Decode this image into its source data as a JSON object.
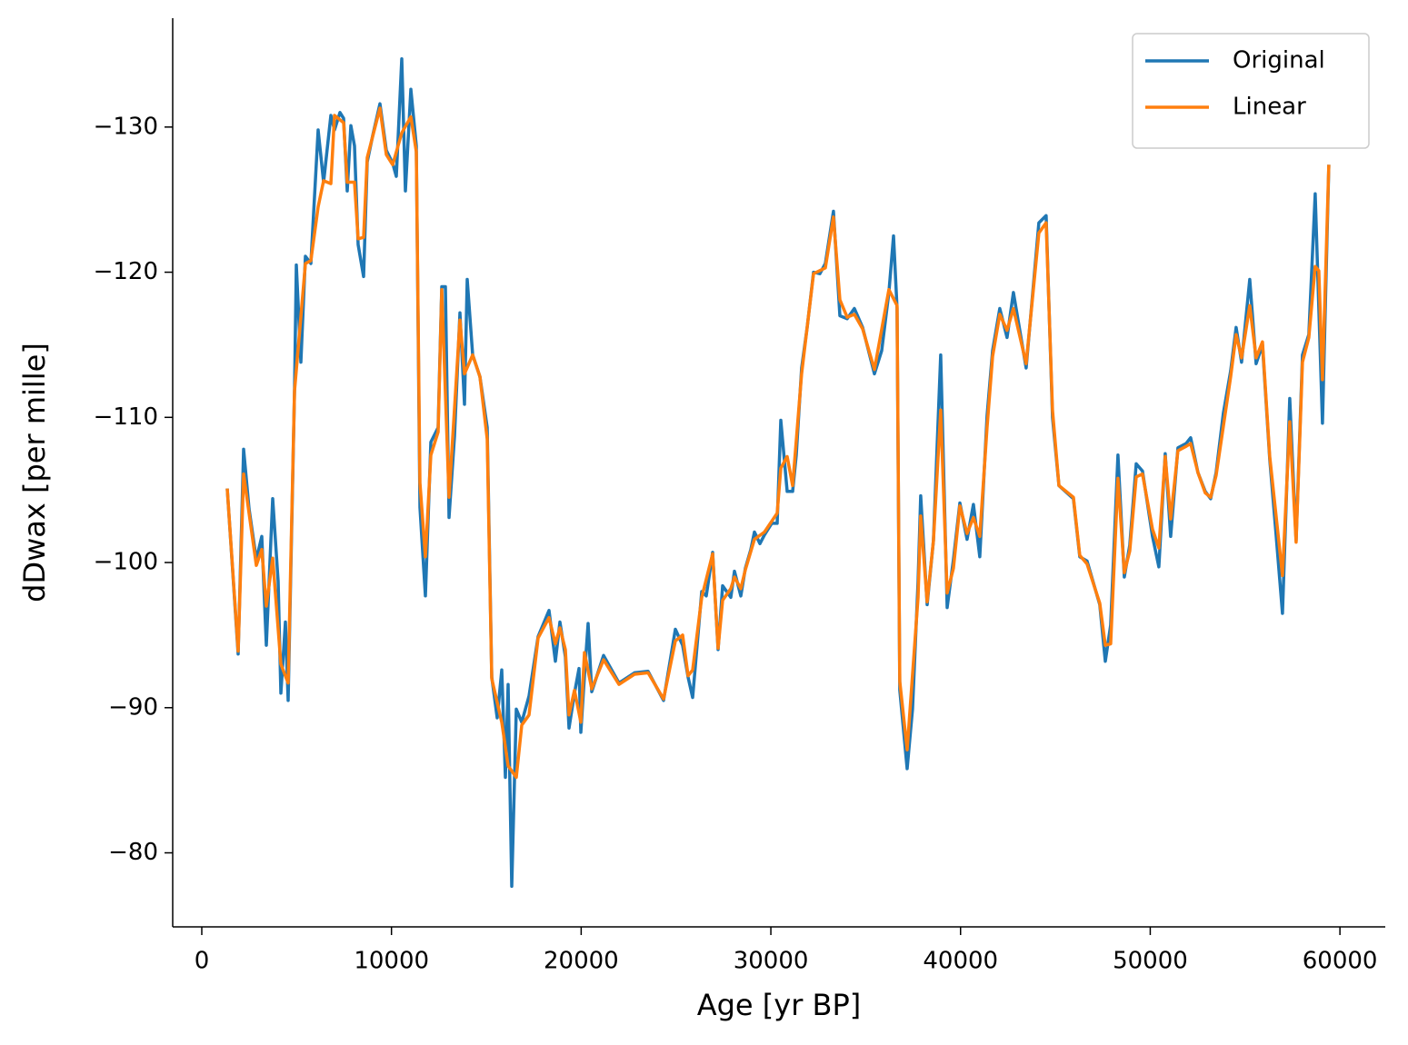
{
  "chart_data": {
    "type": "line",
    "xlabel": "Age [yr BP]",
    "ylabel": "dDwax [per mille]",
    "xlim": [
      -1533,
      62390
    ],
    "xticks": [
      0,
      10000,
      20000,
      30000,
      40000,
      50000,
      60000
    ],
    "ylim": [
      -137.5,
      -74.9
    ],
    "y_inverted": true,
    "yticks": [
      {
        "value": -130,
        "label": "−130"
      },
      {
        "value": -120,
        "label": "−120"
      },
      {
        "value": -110,
        "label": "−110"
      },
      {
        "value": -100,
        "label": "−100"
      },
      {
        "value": -90,
        "label": "−90"
      },
      {
        "value": -80,
        "label": "−80"
      }
    ],
    "legend": "upper right",
    "series": [
      {
        "name": "Original",
        "color": "#1f77b4",
        "x": [
          1340,
          1917,
          2204,
          2491,
          2875,
          3162,
          3402,
          3737,
          4025,
          4169,
          4408,
          4552,
          4887,
          4983,
          5223,
          5462,
          5750,
          6133,
          6421,
          6804,
          6996,
          7283,
          7475,
          7667,
          7858,
          8050,
          8241,
          8529,
          8720,
          9008,
          9391,
          9727,
          10062,
          10254,
          10541,
          10733,
          11021,
          11308,
          11500,
          11787,
          12075,
          12458,
          12650,
          12841,
          13033,
          13321,
          13608,
          13848,
          13992,
          14279,
          14663,
          15046,
          15285,
          15573,
          15812,
          16004,
          16148,
          16339,
          16579,
          16866,
          17250,
          17729,
          18304,
          18639,
          18879,
          19166,
          19358,
          19645,
          19885,
          19981,
          20172,
          20364,
          20556,
          21178,
          21993,
          22808,
          23527,
          24342,
          24964,
          25348,
          25635,
          25875,
          26354,
          26593,
          26929,
          27216,
          27456,
          27887,
          28079,
          28414,
          28654,
          28942,
          29133,
          29421,
          29660,
          30043,
          30331,
          30522,
          30858,
          31145,
          31337,
          31624,
          31912,
          32247,
          32583,
          32870,
          33301,
          33637,
          34020,
          34403,
          34835,
          35458,
          35841,
          36224,
          36464,
          36655,
          36799,
          37183,
          37470,
          37758,
          37901,
          38237,
          38572,
          38955,
          39291,
          39626,
          39962,
          40345,
          40680,
          41016,
          41399,
          41687,
          42070,
          42453,
          42789,
          43459,
          44130,
          44514,
          44849,
          45185,
          45951,
          46287,
          46670,
          47341,
          47629,
          47916,
          48299,
          48635,
          48922,
          49258,
          49593,
          50120,
          50455,
          50791,
          51078,
          51462,
          51893,
          52133,
          52516,
          52899,
          53187,
          53474,
          53857,
          54241,
          54528,
          54816,
          55247,
          55582,
          55918,
          56301,
          56636,
          56972,
          57355,
          57691,
          58026,
          58361,
          58697,
          59080,
          59415
        ],
        "values": [
          -105.1,
          -93.7,
          -107.8,
          -103.7,
          -100.2,
          -101.8,
          -94.3,
          -104.4,
          -98.7,
          -91.0,
          -95.9,
          -90.5,
          -111.8,
          -120.5,
          -113.8,
          -121.1,
          -120.6,
          -129.8,
          -126.2,
          -130.8,
          -129.8,
          -131.0,
          -130.6,
          -125.6,
          -130.1,
          -128.7,
          -121.9,
          -119.7,
          -127.6,
          -129.4,
          -131.6,
          -128.4,
          -127.5,
          -126.6,
          -134.7,
          -125.6,
          -132.6,
          -128.7,
          -103.8,
          -97.7,
          -108.3,
          -109.3,
          -119.0,
          -119.0,
          -103.1,
          -108.7,
          -117.2,
          -110.9,
          -119.5,
          -114.3,
          -112.8,
          -109.3,
          -92.1,
          -89.3,
          -92.6,
          -85.2,
          -91.6,
          -77.7,
          -89.9,
          -89.0,
          -90.8,
          -94.9,
          -96.7,
          -93.2,
          -95.9,
          -93.5,
          -88.6,
          -91.0,
          -92.7,
          -88.3,
          -92.2,
          -95.8,
          -91.1,
          -93.6,
          -91.7,
          -92.4,
          -92.5,
          -90.5,
          -95.4,
          -94.3,
          -92.1,
          -90.7,
          -98.0,
          -97.7,
          -100.7,
          -94.0,
          -98.4,
          -97.6,
          -99.4,
          -97.7,
          -99.6,
          -100.9,
          -102.1,
          -101.3,
          -101.9,
          -102.7,
          -102.7,
          -109.8,
          -104.9,
          -104.9,
          -107.4,
          -113.4,
          -116.2,
          -120.0,
          -119.9,
          -120.6,
          -124.2,
          -117.0,
          -116.8,
          -117.5,
          -116.2,
          -113.0,
          -114.6,
          -118.6,
          -122.5,
          -117.5,
          -91.2,
          -85.8,
          -89.9,
          -98.7,
          -104.6,
          -97.1,
          -101.5,
          -114.3,
          -96.9,
          -100.2,
          -104.1,
          -101.6,
          -104.0,
          -100.4,
          -110.1,
          -114.6,
          -117.5,
          -115.5,
          -118.6,
          -113.4,
          -123.4,
          -123.9,
          -110.0,
          -105.3,
          -104.4,
          -100.4,
          -100.1,
          -97.1,
          -93.2,
          -95.7,
          -107.4,
          -99.0,
          -101.2,
          -106.8,
          -106.3,
          -101.8,
          -99.7,
          -107.5,
          -101.8,
          -107.9,
          -108.2,
          -108.6,
          -106.2,
          -104.9,
          -104.4,
          -106.2,
          -110.3,
          -113.2,
          -116.2,
          -113.8,
          -119.5,
          -113.7,
          -115.0,
          -107.1,
          -101.9,
          -96.5,
          -111.3,
          -101.5,
          -114.3,
          -115.7,
          -125.4,
          -109.6,
          -127.4
        ]
      },
      {
        "name": "Linear",
        "color": "#ff7f0e",
        "x": [
          1340,
          1917,
          2204,
          2875,
          3162,
          3402,
          3737,
          4169,
          4552,
          4887,
          5462,
          5750,
          6133,
          6421,
          6804,
          6996,
          7475,
          7667,
          8050,
          8241,
          8529,
          8720,
          9391,
          9727,
          10062,
          10541,
          11021,
          11308,
          11500,
          11787,
          12075,
          12458,
          12650,
          13033,
          13608,
          13848,
          14279,
          14663,
          15046,
          15285,
          15812,
          16148,
          16579,
          16866,
          17250,
          17729,
          18304,
          18639,
          18879,
          19166,
          19358,
          19645,
          19981,
          20172,
          20556,
          21178,
          21993,
          22808,
          23527,
          24342,
          24964,
          25348,
          25635,
          25875,
          26354,
          26929,
          27216,
          27456,
          27887,
          28079,
          28414,
          28654,
          29133,
          29660,
          30331,
          30522,
          30858,
          31145,
          31624,
          32247,
          32870,
          33301,
          33637,
          34020,
          34403,
          34835,
          35458,
          36224,
          36655,
          36799,
          37183,
          37758,
          37901,
          38237,
          38572,
          38955,
          39291,
          39626,
          39962,
          40345,
          40680,
          41016,
          41399,
          41687,
          42070,
          42453,
          42789,
          43459,
          44130,
          44514,
          44849,
          45185,
          45951,
          46287,
          46670,
          47341,
          47629,
          47916,
          48299,
          48635,
          48922,
          49258,
          49593,
          50120,
          50455,
          50791,
          51078,
          51462,
          51893,
          52133,
          52516,
          52899,
          53187,
          53474,
          54241,
          54528,
          54816,
          55247,
          55582,
          55918,
          56301,
          56972,
          57355,
          57691,
          58026,
          58361,
          58697,
          58889,
          59080,
          59415
        ],
        "values": [
          -105.1,
          -93.9,
          -106.1,
          -99.8,
          -100.9,
          -97.0,
          -100.3,
          -93.0,
          -91.7,
          -111.8,
          -120.6,
          -120.8,
          -124.5,
          -126.3,
          -126.1,
          -130.8,
          -130.3,
          -126.2,
          -126.2,
          -122.3,
          -122.4,
          -127.9,
          -131.3,
          -128.1,
          -127.4,
          -129.6,
          -130.7,
          -128.3,
          -105.5,
          -100.4,
          -107.4,
          -109.0,
          -118.8,
          -104.5,
          -116.7,
          -113.0,
          -114.3,
          -112.8,
          -108.5,
          -92.0,
          -89.0,
          -86.0,
          -85.2,
          -88.8,
          -89.5,
          -94.8,
          -96.2,
          -94.4,
          -95.5,
          -94.0,
          -89.5,
          -91.2,
          -89.0,
          -93.8,
          -91.3,
          -93.3,
          -91.6,
          -92.3,
          -92.4,
          -90.6,
          -94.6,
          -95.0,
          -92.2,
          -92.6,
          -97.6,
          -100.6,
          -94.1,
          -97.4,
          -98.2,
          -99.0,
          -98.2,
          -99.5,
          -101.6,
          -102.1,
          -103.4,
          -106.5,
          -107.3,
          -105.3,
          -113.0,
          -119.9,
          -120.3,
          -123.8,
          -118.1,
          -116.9,
          -117.1,
          -116.1,
          -113.3,
          -118.8,
          -117.7,
          -91.8,
          -87.1,
          -97.6,
          -103.2,
          -97.3,
          -101.5,
          -110.5,
          -97.9,
          -99.6,
          -103.9,
          -102.0,
          -103.1,
          -101.8,
          -109.3,
          -114.2,
          -117.1,
          -116.0,
          -117.5,
          -113.7,
          -122.7,
          -123.4,
          -110.5,
          -105.3,
          -104.5,
          -100.5,
          -99.9,
          -97.2,
          -94.3,
          -94.4,
          -105.8,
          -99.3,
          -100.8,
          -105.9,
          -106.1,
          -102.3,
          -101.0,
          -107.3,
          -103.0,
          -107.7,
          -108.0,
          -108.2,
          -106.2,
          -104.8,
          -104.5,
          -106.0,
          -112.8,
          -115.7,
          -114.1,
          -117.7,
          -114.1,
          -115.2,
          -107.3,
          -99.1,
          -109.7,
          -101.4,
          -113.8,
          -115.5,
          -120.4,
          -120.1,
          -112.6,
          -127.4
        ]
      }
    ]
  }
}
